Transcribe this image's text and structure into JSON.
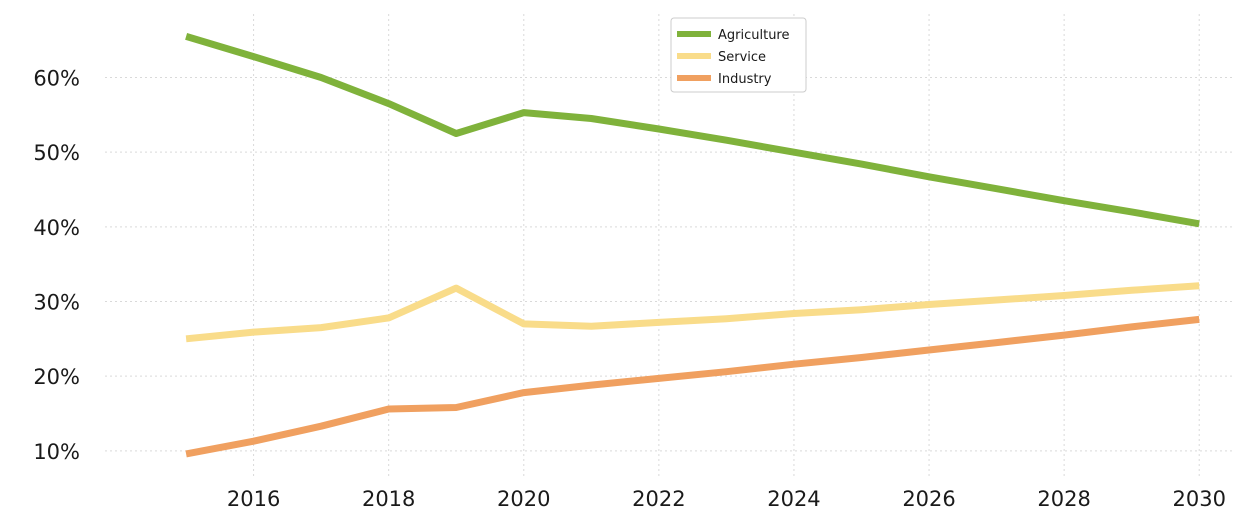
{
  "chart_data": {
    "type": "line",
    "title": "",
    "xlabel": "",
    "ylabel": "",
    "x": [
      2015,
      2016,
      2017,
      2018,
      2019,
      2020,
      2021,
      2022,
      2023,
      2024,
      2025,
      2026,
      2027,
      2028,
      2029,
      2030
    ],
    "x_ticks": [
      2016,
      2018,
      2020,
      2022,
      2024,
      2026,
      2028,
      2030
    ],
    "x_tick_labels": [
      "2016",
      "2018",
      "2020",
      "2022",
      "2024",
      "2026",
      "2028",
      "2030"
    ],
    "xlim": [
      2013.8,
      2030.5
    ],
    "y_ticks": [
      10,
      20,
      30,
      40,
      50,
      60
    ],
    "y_tick_labels": [
      "10%",
      "20%",
      "30%",
      "40%",
      "50%",
      "60%"
    ],
    "ylim": [
      6.5,
      68.5
    ],
    "grid": true,
    "legend_position": "top-center",
    "series": [
      {
        "name": "Agriculture",
        "color": "#7fb23b",
        "values": [
          65.5,
          62.8,
          60.0,
          56.5,
          52.5,
          55.3,
          54.5,
          53.1,
          51.6,
          50.0,
          48.4,
          46.7,
          45.1,
          43.5,
          42.0,
          40.4
        ]
      },
      {
        "name": "Service",
        "color": "#f9dc8a",
        "values": [
          25.0,
          25.9,
          26.5,
          27.8,
          31.8,
          27.0,
          26.7,
          27.2,
          27.7,
          28.4,
          28.9,
          29.6,
          30.2,
          30.8,
          31.5,
          32.1
        ]
      },
      {
        "name": "Industry",
        "color": "#f0a060",
        "values": [
          9.6,
          11.3,
          13.3,
          15.6,
          15.8,
          17.8,
          18.8,
          19.7,
          20.6,
          21.6,
          22.5,
          23.5,
          24.5,
          25.5,
          26.6,
          27.6
        ]
      }
    ]
  }
}
